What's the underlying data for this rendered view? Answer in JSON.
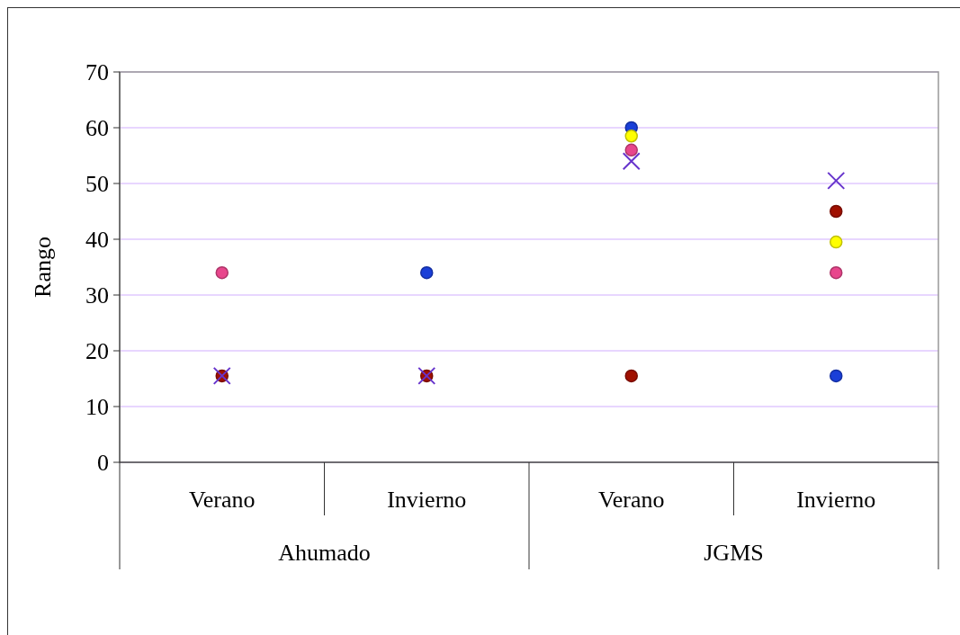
{
  "chart_data": {
    "type": "scatter",
    "ylabel": "Rango",
    "categories": [
      "Verano",
      "Invierno",
      "Verano",
      "Invierno"
    ],
    "annotations": [
      "Ahumado",
      "JGMS"
    ],
    "ylim": [
      0,
      70
    ],
    "yticks": [
      0,
      10,
      20,
      30,
      40,
      50,
      60,
      70
    ],
    "grid": "y",
    "series": [
      {
        "color": "#e8468c",
        "marker": "circle",
        "values": [
          34,
          null,
          56,
          34
        ]
      },
      {
        "color": "#1a3fd8",
        "marker": "circle",
        "values": [
          null,
          34,
          60,
          15.5
        ]
      },
      {
        "color": "#ffff00",
        "marker": "circle",
        "values": [
          null,
          null,
          58.5,
          39.5
        ]
      },
      {
        "color": "#a01000",
        "marker": "circle",
        "values": [
          15.5,
          15.5,
          15.5,
          45
        ]
      },
      {
        "color": "#6633cc",
        "marker": "cross",
        "values": [
          15.5,
          15.5,
          54,
          50.5
        ]
      }
    ]
  }
}
